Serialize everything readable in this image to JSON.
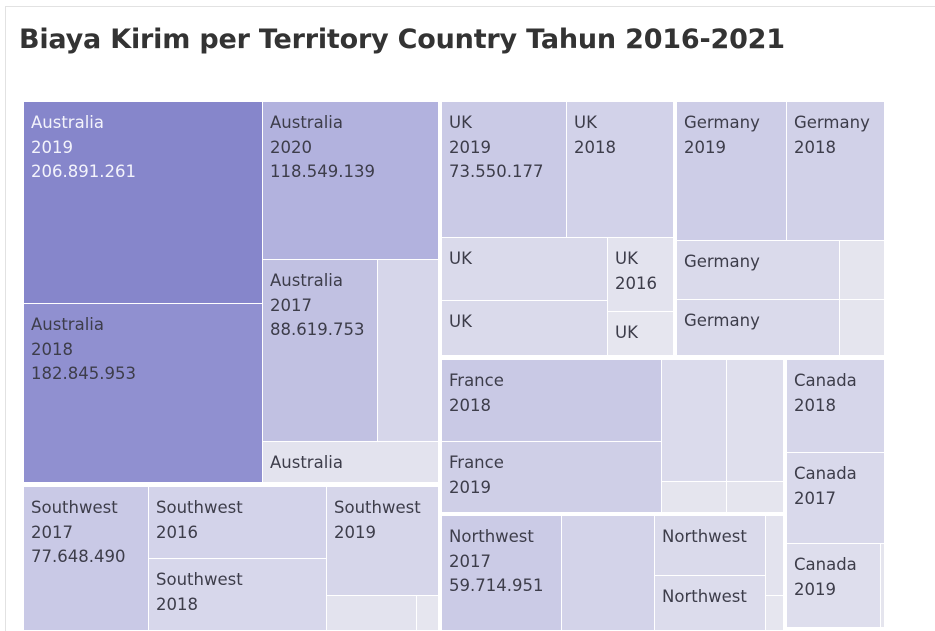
{
  "title": "Biaya Kirim per Territory Country Tahun 2016-2021",
  "chart_data": {
    "type": "treemap",
    "title": "Biaya Kirim per Territory Country Tahun 2016-2021",
    "color_scale": [
      "#e6e6ee",
      "#8686cb"
    ],
    "groups": [
      {
        "name": "Australia",
        "items": [
          {
            "id": "au2019",
            "label": [
              "Australia",
              "2019",
              "206.891.261"
            ],
            "value": 206891261,
            "color": "#8686cb"
          },
          {
            "id": "au2018",
            "label": [
              "Australia",
              "2018",
              "182.845.953"
            ],
            "value": 182845953,
            "color": "#9090d0"
          },
          {
            "id": "au2020",
            "label": [
              "Australia",
              "2020",
              "118.549.139"
            ],
            "value": 118549139,
            "color": "#b2b2de"
          },
          {
            "id": "au2017",
            "label": [
              "Australia",
              "2017",
              "88.619.753"
            ],
            "value": 88619753,
            "color": "#c1c1e2"
          },
          {
            "id": "au-a",
            "label": [],
            "color": "#d6d6ea"
          },
          {
            "id": "au-b",
            "label": [
              "Australia"
            ],
            "color": "#e3e3ee"
          }
        ]
      },
      {
        "name": "UK",
        "items": [
          {
            "id": "uk2019",
            "label": [
              "UK",
              "2019",
              "73.550.177"
            ],
            "value": 73550177,
            "color": "#cacae6"
          },
          {
            "id": "uk2018",
            "label": [
              "UK",
              "2018"
            ],
            "color": "#d2d2e9"
          },
          {
            "id": "uk-a",
            "label": [
              "UK"
            ],
            "color": "#dadaeb"
          },
          {
            "id": "uk2016",
            "label": [
              "UK",
              "2016"
            ],
            "color": "#e3e3ee"
          },
          {
            "id": "uk-b",
            "label": [
              "UK"
            ],
            "color": "#dadaeb"
          },
          {
            "id": "uk-c",
            "label": [
              "UK"
            ],
            "color": "#e6e6ef"
          }
        ]
      },
      {
        "name": "Germany",
        "items": [
          {
            "id": "de2019",
            "label": [
              "Germany",
              "2019"
            ],
            "color": "#cdcde7"
          },
          {
            "id": "de2018",
            "label": [
              "Germany",
              "2018"
            ],
            "color": "#d1d1e8"
          },
          {
            "id": "de-a",
            "label": [
              "Germany"
            ],
            "color": "#dadaeb"
          },
          {
            "id": "de-b",
            "label": [],
            "color": "#e5e5ee"
          },
          {
            "id": "de-c",
            "label": [
              "Germany"
            ],
            "color": "#dadaeb"
          },
          {
            "id": "de-d",
            "label": [],
            "color": "#e5e5ee"
          }
        ]
      },
      {
        "name": "France",
        "items": [
          {
            "id": "fr2018",
            "label": [
              "France",
              "2018"
            ],
            "color": "#c9c9e5"
          },
          {
            "id": "fr2019",
            "label": [
              "France",
              "2019"
            ],
            "color": "#cfcfe7"
          },
          {
            "id": "fr-a",
            "label": [],
            "color": "#dbdbec"
          },
          {
            "id": "fr-b",
            "label": [],
            "color": "#dfdfed"
          },
          {
            "id": "fr-c",
            "label": [],
            "color": "#e5e5ee"
          },
          {
            "id": "fr-d",
            "label": [],
            "color": "#e5e5ee"
          }
        ]
      },
      {
        "name": "Canada",
        "items": [
          {
            "id": "ca2018",
            "label": [
              "Canada",
              "2018"
            ],
            "color": "#d6d6ea"
          },
          {
            "id": "ca2017",
            "label": [
              "Canada",
              "2017"
            ],
            "color": "#d9d9eb"
          },
          {
            "id": "ca2019",
            "label": [
              "Canada",
              "2019"
            ],
            "color": "#dedeed"
          },
          {
            "id": "ca-a",
            "label": [],
            "color": "#e5e5ee"
          }
        ]
      },
      {
        "name": "Southwest",
        "items": [
          {
            "id": "sw2017",
            "label": [
              "Southwest",
              "2017",
              "77.648.490"
            ],
            "value": 77648490,
            "color": "#c9c9e6"
          },
          {
            "id": "sw2016",
            "label": [
              "Southwest",
              "2016"
            ],
            "color": "#d3d3ea"
          },
          {
            "id": "sw2019",
            "label": [
              "Southwest",
              "2019"
            ],
            "color": "#d6d6ea"
          },
          {
            "id": "sw2018",
            "label": [
              "Southwest",
              "2018"
            ],
            "color": "#d7d7eb"
          },
          {
            "id": "sw-a",
            "label": [],
            "color": "#e3e3ee"
          },
          {
            "id": "sw-b",
            "label": [],
            "color": "#e6e6ef"
          }
        ]
      },
      {
        "name": "Northwest",
        "items": [
          {
            "id": "nw2017",
            "label": [
              "Northwest",
              "2017",
              "59.714.951"
            ],
            "value": 59714951,
            "color": "#cbcbe6"
          },
          {
            "id": "nw-a",
            "label": [],
            "color": "#d3d3e9"
          },
          {
            "id": "nw-b",
            "label": [
              "Northwest"
            ],
            "color": "#dadaeb"
          },
          {
            "id": "nw-c",
            "label": [
              "Northwest"
            ],
            "color": "#dcdcec"
          },
          {
            "id": "nw-d",
            "label": [],
            "color": "#e3e3ee"
          },
          {
            "id": "nw-e",
            "label": [],
            "color": "#e6e6ef"
          }
        ]
      }
    ]
  }
}
